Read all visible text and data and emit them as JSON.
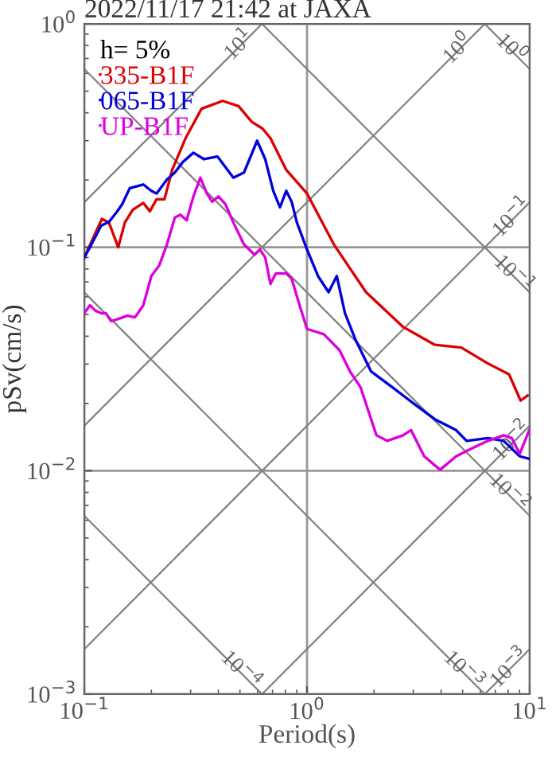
{
  "chart_data": {
    "type": "line",
    "title": "2022/11/17 21:42 at JAXA",
    "xlabel": "Period(s)",
    "ylabel": "pSv(cm/s)",
    "legend_title": "h= 5%",
    "log": "xy",
    "grid": true,
    "legend": "top left",
    "xlim": [
      0.1,
      10
    ],
    "ylim": [
      0.001,
      1
    ],
    "xticks": [
      {
        "value": 0.1,
        "label": "10$^{−1}$"
      },
      {
        "value": 1,
        "label": "10$^{0}$"
      },
      {
        "value": 10,
        "label": "10$^{1}$"
      }
    ],
    "yticks": [
      {
        "value": 0.001,
        "label": "10$^{−3}$"
      },
      {
        "value": 0.01,
        "label": "10$^{−2}$"
      },
      {
        "value": 0.1,
        "label": "10$^{−1}$"
      },
      {
        "value": 1,
        "label": "10$^{0}$"
      }
    ],
    "series": [
      {
        "name": "335-B1F",
        "color": "#dd0000",
        "x": [
          0.1,
          0.109,
          0.12,
          0.129,
          0.142,
          0.152,
          0.165,
          0.184,
          0.197,
          0.211,
          0.229,
          0.248,
          0.285,
          0.336,
          0.418,
          0.493,
          0.565,
          0.631,
          0.685,
          0.807,
          1.0,
          1.32,
          1.84,
          2.7,
          3.75,
          4.93,
          6.49,
          8.07,
          9.1,
          9.79
        ],
        "values": [
          0.09,
          0.109,
          0.134,
          0.129,
          0.1,
          0.129,
          0.147,
          0.158,
          0.145,
          0.164,
          0.164,
          0.222,
          0.308,
          0.417,
          0.452,
          0.428,
          0.364,
          0.34,
          0.308,
          0.222,
          0.174,
          0.103,
          0.063,
          0.044,
          0.0366,
          0.0356,
          0.0302,
          0.027,
          0.0206,
          0.0217
        ]
      },
      {
        "name": "065-B1F",
        "color": "#0000dd",
        "x": [
          0.1,
          0.106,
          0.119,
          0.129,
          0.14,
          0.148,
          0.16,
          0.184,
          0.2,
          0.211,
          0.235,
          0.255,
          0.277,
          0.309,
          0.345,
          0.396,
          0.467,
          0.521,
          0.597,
          0.649,
          0.705,
          0.756,
          0.807,
          0.853,
          0.901,
          1.0,
          1.12,
          1.25,
          1.36,
          1.48,
          1.65,
          1.94,
          2.42,
          3.01,
          3.75,
          4.67,
          5.21,
          6.49,
          7.64,
          9.02,
          9.95
        ],
        "values": [
          0.09,
          0.1,
          0.125,
          0.13,
          0.144,
          0.156,
          0.184,
          0.191,
          0.179,
          0.174,
          0.201,
          0.216,
          0.241,
          0.265,
          0.248,
          0.255,
          0.205,
          0.216,
          0.3,
          0.248,
          0.179,
          0.151,
          0.179,
          0.16,
          0.129,
          0.0977,
          0.0744,
          0.063,
          0.0744,
          0.0507,
          0.0386,
          0.0278,
          0.0236,
          0.02,
          0.017,
          0.0152,
          0.0136,
          0.014,
          0.0136,
          0.0116,
          0.0113
        ]
      },
      {
        "name": "UP-B1F",
        "color": "#dd00dd",
        "x": [
          0.1,
          0.106,
          0.112,
          0.119,
          0.125,
          0.132,
          0.144,
          0.156,
          0.169,
          0.184,
          0.2,
          0.217,
          0.235,
          0.255,
          0.27,
          0.288,
          0.309,
          0.332,
          0.355,
          0.375,
          0.4,
          0.43,
          0.467,
          0.521,
          0.581,
          0.614,
          0.649,
          0.685,
          0.724,
          0.807,
          0.853,
          0.926,
          1.0,
          1.19,
          1.4,
          1.56,
          1.74,
          2.05,
          2.29,
          2.7,
          2.93,
          3.36,
          3.96,
          4.67,
          5.5,
          6.49,
          7.64,
          8.3,
          9.02,
          9.95
        ],
        "values": [
          0.0507,
          0.055,
          0.0521,
          0.0507,
          0.0507,
          0.0467,
          0.048,
          0.0494,
          0.0486,
          0.055,
          0.0744,
          0.083,
          0.103,
          0.136,
          0.14,
          0.132,
          0.169,
          0.205,
          0.174,
          0.16,
          0.169,
          0.156,
          0.129,
          0.103,
          0.0926,
          0.0977,
          0.0901,
          0.0685,
          0.0764,
          0.0764,
          0.0724,
          0.055,
          0.0431,
          0.0408,
          0.0346,
          0.0278,
          0.0236,
          0.0144,
          0.0136,
          0.0144,
          0.0152,
          0.0116,
          0.0101,
          0.0116,
          0.0126,
          0.0136,
          0.0144,
          0.014,
          0.0119,
          0.0152
        ]
      },
      {
        "color": "#808080",
        "x": [
          0.1,
          0.628
        ],
        "values": [
          0.159,
          1
        ]
      },
      {
        "color": "#808080",
        "x": [
          0.1,
          6.28
        ],
        "values": [
          0.0159,
          1
        ]
      },
      {
        "color": "#808080",
        "x": [
          0.1,
          10
        ],
        "values": [
          0.00159,
          0.159
        ]
      },
      {
        "color": "#808080",
        "x": [
          0.628,
          10
        ],
        "values": [
          0.001,
          0.0159
        ]
      },
      {
        "color": "#808080",
        "x": [
          6.28,
          10
        ],
        "values": [
          0.001,
          0.00159
        ]
      },
      {
        "color": "#808080",
        "x": [
          6.28,
          10
        ],
        "values": [
          1,
          0.628
        ]
      },
      {
        "color": "#808080",
        "x": [
          0.628,
          10
        ],
        "values": [
          1,
          0.0628
        ]
      },
      {
        "color": "#808080",
        "x": [
          0.1,
          10
        ],
        "values": [
          0.628,
          0.00628
        ]
      },
      {
        "color": "#808080",
        "x": [
          0.1,
          6.28
        ],
        "values": [
          0.0628,
          0.001
        ]
      },
      {
        "color": "#808080",
        "x": [
          0.1,
          0.628
        ],
        "values": [
          0.00628,
          0.001
        ]
      }
    ],
    "annotations": [
      {
        "text": "10$^{1}$",
        "x": 0.5,
        "y": 0.8
      },
      {
        "text": "10$^{0}$",
        "x": 4.8,
        "y": 0.77
      },
      {
        "text": "10$^{0}$",
        "x": 8.2,
        "y": 0.77
      },
      {
        "text": "10$^{−1}$",
        "x": 8.4,
        "y": 0.135
      },
      {
        "text": "10$^{−1}$",
        "x": 8.4,
        "y": 0.075
      },
      {
        "text": "10$^{−2}$",
        "x": 8.4,
        "y": 0.0135
      },
      {
        "text": "10$^{−2}$",
        "x": 8.0,
        "y": 0.0079
      },
      {
        "text": "10$^{−4}$",
        "x": 0.5,
        "y": 0.00127
      },
      {
        "text": "10$^{−3}$",
        "x": 5.0,
        "y": 0.00127
      },
      {
        "text": "10$^{−3}$",
        "x": 8.2,
        "y": 0.0013
      }
    ]
  }
}
